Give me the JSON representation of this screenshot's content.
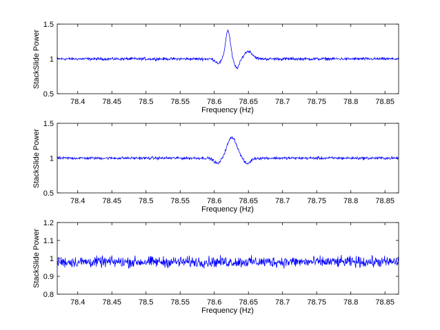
{
  "chart_data": [
    {
      "type": "line",
      "xlabel": "Frequency (Hz)",
      "ylabel": "StackSlide Power",
      "xlim": [
        78.37,
        78.87
      ],
      "ylim": [
        0.5,
        1.5
      ],
      "xticks": [
        "78.4",
        "78.45",
        "78.5",
        "78.55",
        "78.6",
        "78.65",
        "78.7",
        "78.75",
        "78.8",
        "78.85"
      ],
      "yticks": [
        "0.5",
        "1",
        "1.5"
      ],
      "series": [
        {
          "color": "#0000ff",
          "baseline": 1.0,
          "noise_amplitude": 0.03,
          "features": [
            {
              "center": 78.606,
              "width": 0.004,
              "amplitude": -0.06
            },
            {
              "center": 78.62,
              "width": 0.0035,
              "amplitude": 0.41
            },
            {
              "center": 78.633,
              "width": 0.004,
              "amplitude": -0.13
            },
            {
              "center": 78.65,
              "width": 0.006,
              "amplitude": 0.11
            }
          ]
        }
      ]
    },
    {
      "type": "line",
      "xlabel": "Frequency (Hz)",
      "ylabel": "StackSlide Power",
      "xlim": [
        78.37,
        78.87
      ],
      "ylim": [
        0.5,
        1.5
      ],
      "xticks": [
        "78.4",
        "78.45",
        "78.5",
        "78.55",
        "78.6",
        "78.65",
        "78.7",
        "78.75",
        "78.8",
        "78.85"
      ],
      "yticks": [
        "0.5",
        "1",
        "1.5"
      ],
      "series": [
        {
          "color": "#0000ff",
          "baseline": 1.0,
          "noise_amplitude": 0.03,
          "features": [
            {
              "center": 78.605,
              "width": 0.005,
              "amplitude": -0.08
            },
            {
              "center": 78.626,
              "width": 0.007,
              "amplitude": 0.3
            },
            {
              "center": 78.648,
              "width": 0.005,
              "amplitude": -0.08
            }
          ]
        }
      ]
    },
    {
      "type": "line",
      "xlabel": "Frequency (Hz)",
      "ylabel": "StackSlide Power",
      "xlim": [
        78.37,
        78.87
      ],
      "ylim": [
        0.8,
        1.2
      ],
      "xticks": [
        "78.4",
        "78.45",
        "78.5",
        "78.55",
        "78.6",
        "78.65",
        "78.7",
        "78.75",
        "78.8",
        "78.85"
      ],
      "yticks": [
        "0.8",
        "0.9",
        "1",
        "1.1",
        "1.2"
      ],
      "series": [
        {
          "color": "#0000ff",
          "baseline": 0.98,
          "noise_amplitude": 0.045,
          "features": []
        }
      ]
    }
  ]
}
